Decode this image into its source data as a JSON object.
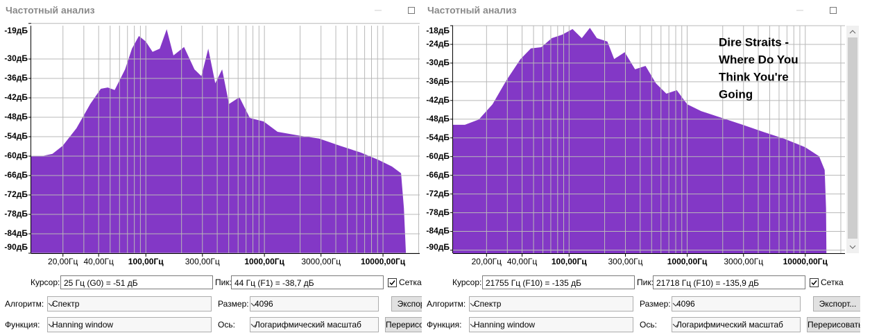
{
  "panels": [
    {
      "title": "Частотный анализ",
      "chart": {
        "type": "area",
        "color": "#8338c6",
        "grid": true,
        "log_x": true,
        "ylim": [
          -90,
          -19.7
        ],
        "yticks": [
          {
            "value": -19,
            "label": "-19дБ"
          },
          {
            "value": -30,
            "label": "-30дБ"
          },
          {
            "value": -36,
            "label": "-36дБ"
          },
          {
            "value": -42,
            "label": "-42дБ"
          },
          {
            "value": -48,
            "label": "-48дБ"
          },
          {
            "value": -54,
            "label": "-54дБ"
          },
          {
            "value": -60,
            "label": "-60дБ"
          },
          {
            "value": -66,
            "label": "-66дБ"
          },
          {
            "value": -72,
            "label": "-72дБ"
          },
          {
            "value": -78,
            "label": "-78дБ"
          },
          {
            "value": -84,
            "label": "-84дБ"
          },
          {
            "value": -90,
            "label": "-90дБ"
          }
        ],
        "xlim": [
          10.8,
          20400
        ],
        "xticks": [
          {
            "value": 20,
            "label": "20,00Гц"
          },
          {
            "value": 40,
            "label": "40,00Гц"
          },
          {
            "value": 100,
            "label": "100,00Гц"
          },
          {
            "value": 300,
            "label": "300,00Гц"
          },
          {
            "value": 1000,
            "label": "1000,00Гц"
          },
          {
            "value": 3000,
            "label": "3000,00Гц"
          },
          {
            "value": 10000,
            "label": "10000,00Гц"
          }
        ],
        "xgrid": [
          20,
          30,
          40,
          50,
          60,
          70,
          80,
          90,
          100,
          200,
          300,
          400,
          500,
          600,
          700,
          800,
          900,
          1000,
          2000,
          3000,
          4000,
          5000,
          6000,
          7000,
          8000,
          9000,
          10000,
          20000
        ],
        "x": [
          10.8,
          13.3,
          16.3,
          19.9,
          26,
          34,
          41.7,
          47.7,
          54.6,
          66.8,
          76.4,
          87.4,
          100,
          114,
          131,
          150,
          171,
          210,
          257,
          294,
          336,
          385,
          440,
          503,
          615,
          753,
          986,
          1291,
          1934,
          2898,
          4340,
          6500,
          9100,
          11900,
          14200,
          15000,
          15600
        ],
        "values": [
          -60,
          -60,
          -59.3,
          -56.8,
          -51.4,
          -43.9,
          -39.2,
          -38.8,
          -39.6,
          -33.2,
          -26.8,
          -22.9,
          -24.6,
          -27.8,
          -26.8,
          -20.8,
          -28.9,
          -26.3,
          -33.2,
          -35.3,
          -26.8,
          -37.5,
          -33.2,
          -43.9,
          -41.8,
          -48.2,
          -49.3,
          -52.5,
          -53.6,
          -54.6,
          -56.8,
          -58.9,
          -61.1,
          -63.2,
          -65.3,
          -76.1,
          -90
        ]
      },
      "cursor_label": "Курсор:",
      "cursor": "25 Гц (G0) = -51 дБ",
      "peak_label": "Пик:",
      "peak": "44 Гц (F1) = -38,7 дБ",
      "grid_label": "Сетка",
      "grid_checked": true,
      "algorithm_label": "Алгоритм:",
      "algorithm": "Спектр",
      "size_label": "Размер:",
      "size": "4096",
      "export_button": "Экспорт...",
      "function_label": "Функция:",
      "function": "Hanning window",
      "axis_label": "Ось:",
      "axis": "Логарифмический масштаб",
      "redraw_button": "Перерисовать"
    },
    {
      "title": "Частотный анализ",
      "chart": {
        "type": "area",
        "color": "#8338c6",
        "grid": true,
        "log_x": true,
        "ylim": [
          -91,
          -18
        ],
        "yticks": [
          {
            "value": -18,
            "label": "-18дБ"
          },
          {
            "value": -24,
            "label": "-24дБ"
          },
          {
            "value": -30,
            "label": "-30дБ"
          },
          {
            "value": -36,
            "label": "-36дБ"
          },
          {
            "value": -42,
            "label": "-42дБ"
          },
          {
            "value": -48,
            "label": "-48дБ"
          },
          {
            "value": -54,
            "label": "-54дБ"
          },
          {
            "value": -60,
            "label": "-60дБ"
          },
          {
            "value": -66,
            "label": "-66дБ"
          },
          {
            "value": -72,
            "label": "-72дБ"
          },
          {
            "value": -78,
            "label": "-78дБ"
          },
          {
            "value": -84,
            "label": "-84дБ"
          },
          {
            "value": -90,
            "label": "-90дБ"
          }
        ],
        "xlim": [
          10.4,
          21700
        ],
        "xticks": [
          {
            "value": 20,
            "label": "20,00Гц"
          },
          {
            "value": 40,
            "label": "40,00Гц"
          },
          {
            "value": 100,
            "label": "100,00Гц"
          },
          {
            "value": 300,
            "label": "300,00Гц"
          },
          {
            "value": 1000,
            "label": "1000,00Гц"
          },
          {
            "value": 3000,
            "label": "3000,00Гц"
          },
          {
            "value": 10000,
            "label": "10000,00Гц"
          }
        ],
        "xgrid": [
          20,
          30,
          40,
          50,
          60,
          70,
          80,
          90,
          100,
          200,
          300,
          400,
          500,
          600,
          700,
          800,
          900,
          1000,
          2000,
          3000,
          4000,
          5000,
          6000,
          7000,
          8000,
          9000,
          10000,
          20000
        ],
        "x": [
          10.4,
          13.1,
          17.2,
          22.5,
          29.6,
          38.8,
          47.5,
          58.2,
          71.3,
          87.3,
          107,
          128,
          150,
          172,
          211,
          241,
          296,
          362,
          444,
          544,
          666,
          816,
          1000,
          1312,
          1968,
          2955,
          4436,
          6667,
          10000,
          13100,
          14600,
          15000,
          15100
        ],
        "values": [
          -49.8,
          -49.8,
          -48.1,
          -43.2,
          -35.4,
          -28.7,
          -25.3,
          -24.9,
          -22,
          -20.9,
          -19.1,
          -22,
          -18.7,
          -22,
          -23.1,
          -28.7,
          -26.5,
          -32,
          -30.9,
          -36.5,
          -39.8,
          -38.7,
          -43.2,
          -45.4,
          -47.6,
          -49.8,
          -52.1,
          -54.3,
          -57,
          -59.9,
          -64.3,
          -76.6,
          -90.4
        ],
        "annotation": [
          "Dire Straits -",
          "Where Do You",
          "Think You're",
          "Going"
        ]
      },
      "cursor_label": "Курсор:",
      "cursor": "21755 Гц (F10) = -135 дБ",
      "peak_label": "Пик:",
      "peak": "21718 Гц (F10) = -135,9 дБ",
      "grid_label": "Сетка",
      "grid_checked": true,
      "algorithm_label": "Алгоритм:",
      "algorithm": "Спектр",
      "size_label": "Размер:",
      "size": "4096",
      "export_button": "Экспорт...",
      "function_label": "Функция:",
      "function": "Hanning window",
      "axis_label": "Ось:",
      "axis": "Логарифмический масштаб",
      "redraw_button": "Перерисовать"
    }
  ]
}
